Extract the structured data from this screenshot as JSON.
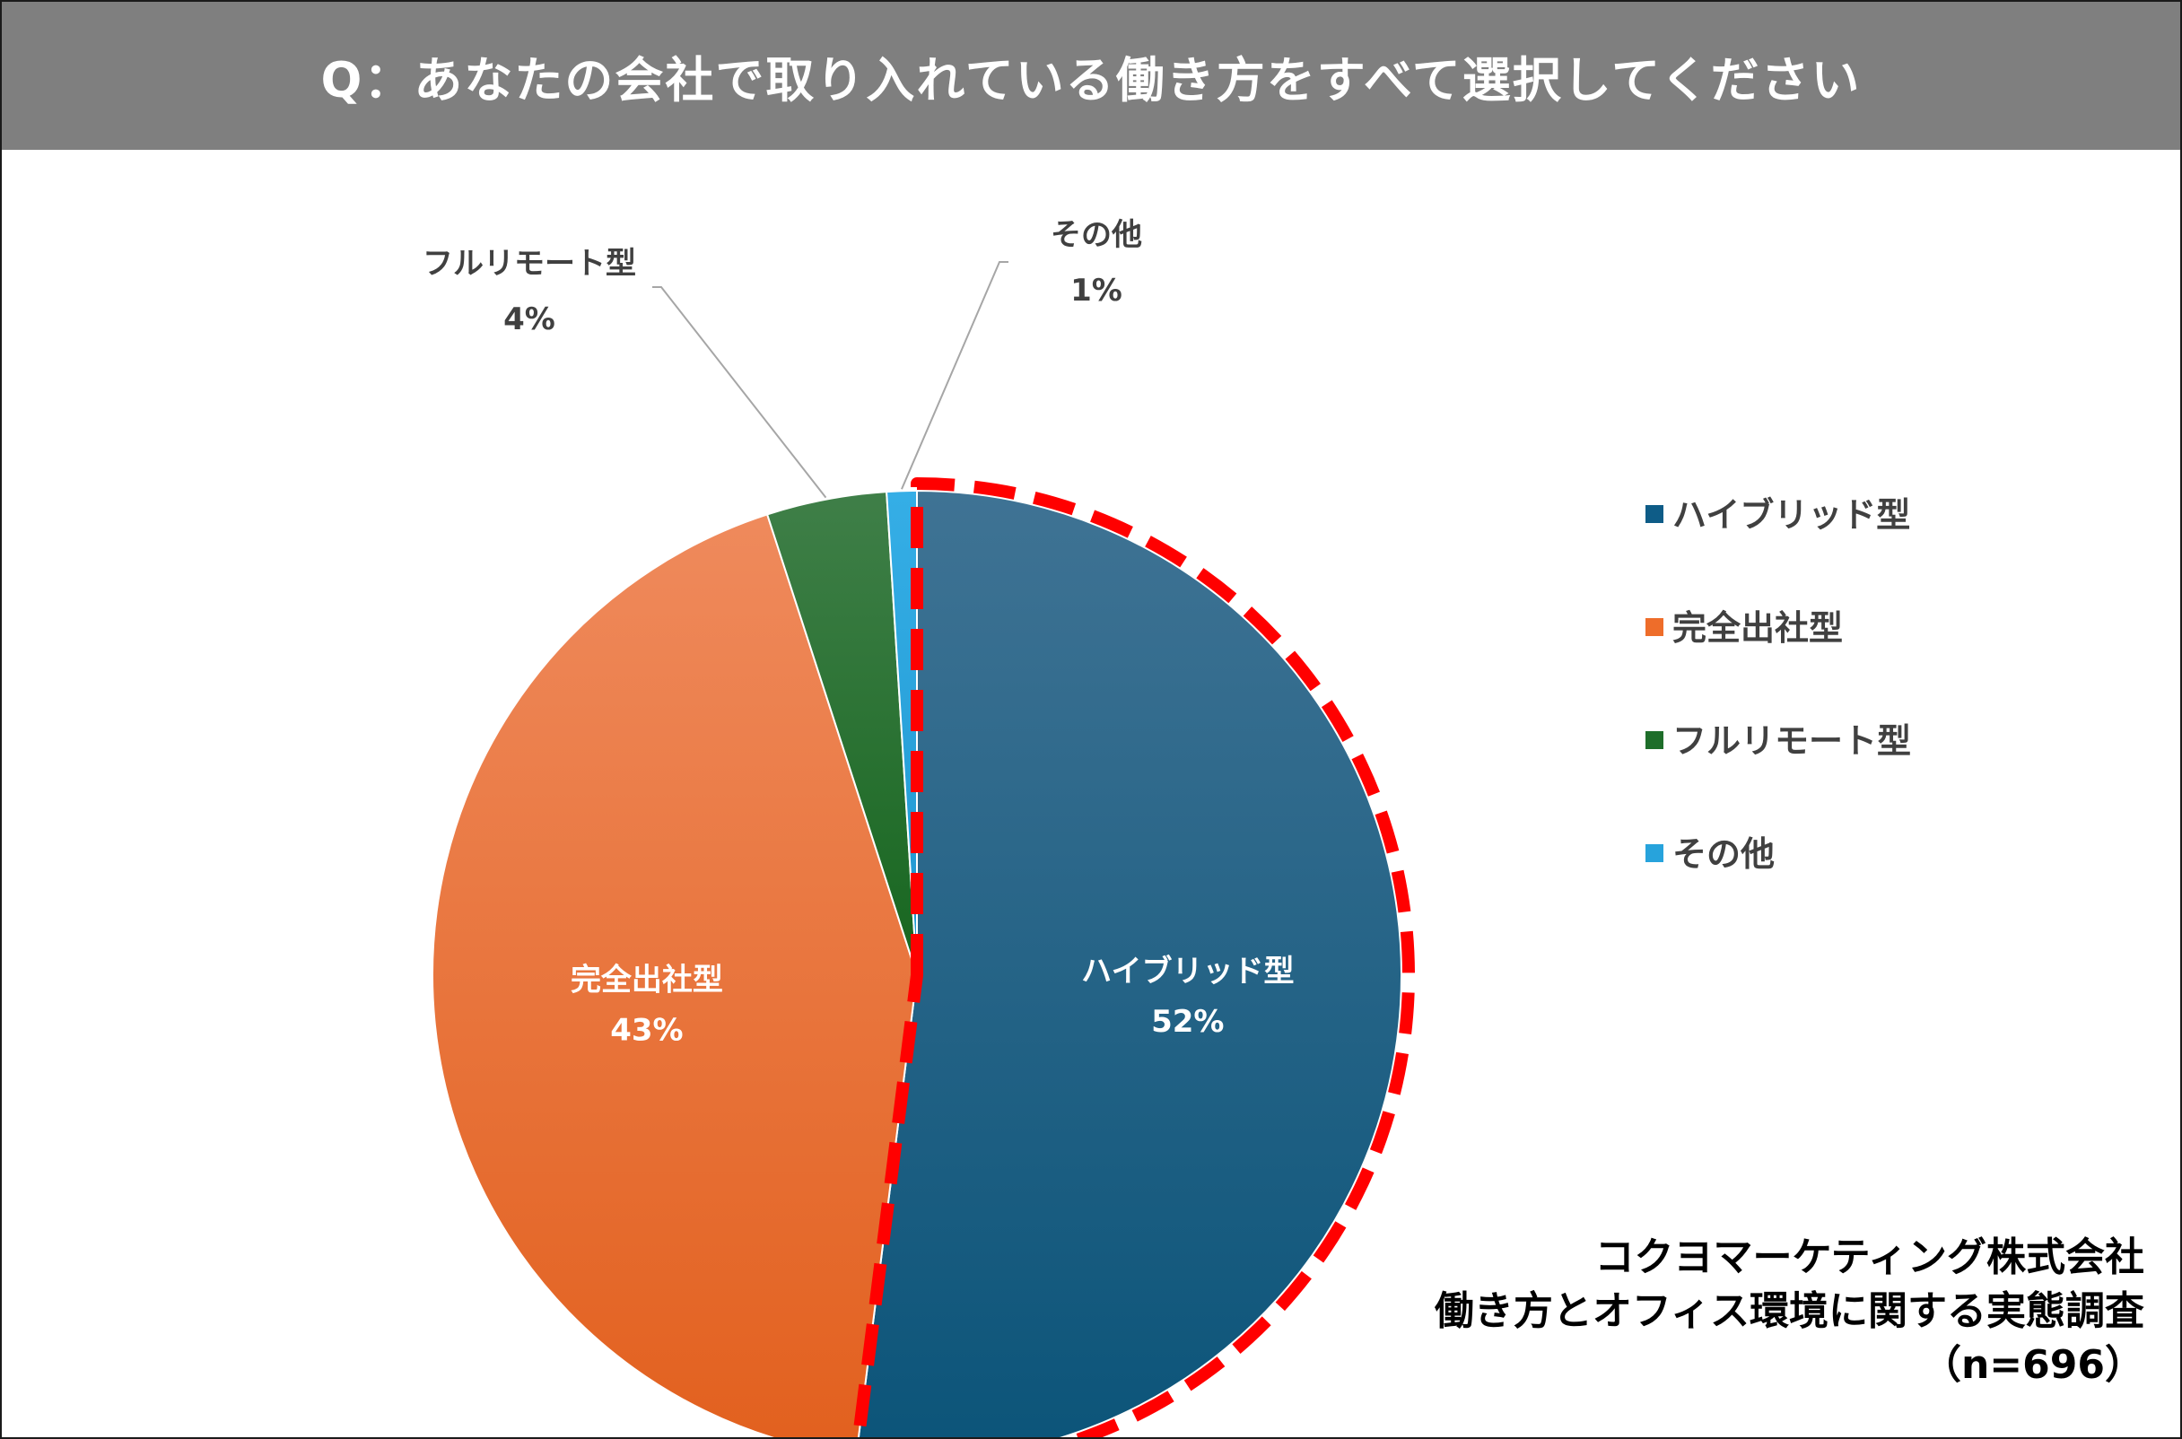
{
  "header": {
    "title": "Q：あなたの会社で取り入れている働き方をすべて選択してください"
  },
  "chart_data": {
    "type": "pie",
    "categories": [
      "ハイブリッド型",
      "完全出社型",
      "フルリモート型",
      "その他"
    ],
    "values": [
      52,
      43,
      4,
      1
    ],
    "value_labels": [
      "52%",
      "43%",
      "4%",
      "1%"
    ],
    "colors": [
      "#0e5c87",
      "#ee6d2a",
      "#1e6e2a",
      "#27a3dc"
    ],
    "highlight": {
      "category": "ハイブリッド型",
      "style": "red-dashed-outline",
      "color": "#ff0000"
    },
    "legend_position": "right",
    "legend": [
      "ハイブリッド型",
      "完全出社型",
      "フルリモート型",
      "その他"
    ]
  },
  "credit": {
    "line1": "コクヨマーケティング株式会社",
    "line2": "働き方とオフィス環境に関する実態調査",
    "line3": "（n=696）"
  }
}
